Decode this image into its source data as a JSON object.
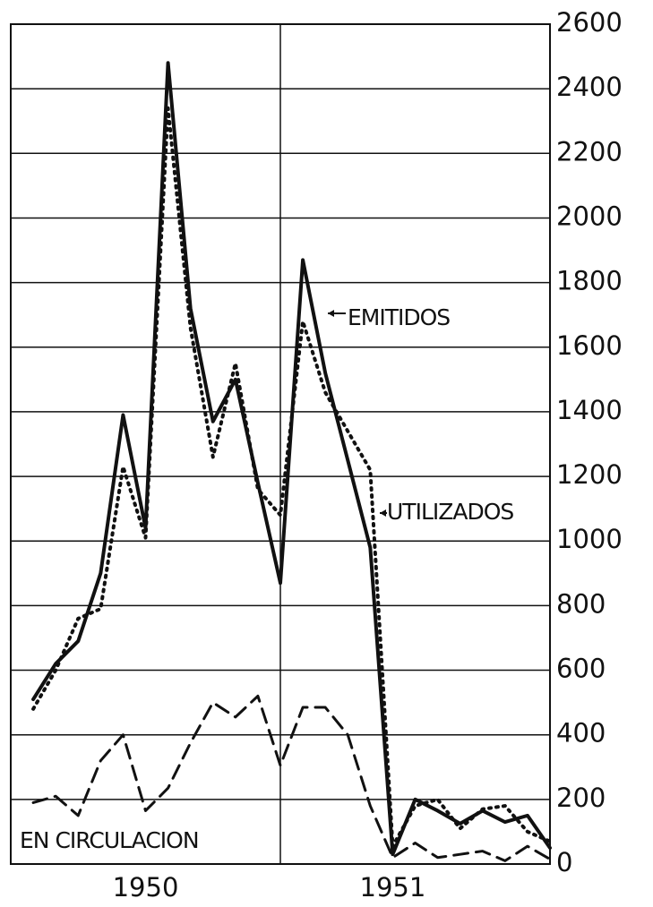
{
  "chart_data": {
    "type": "line",
    "x": [
      1,
      2,
      3,
      4,
      5,
      6,
      7,
      8,
      9,
      10,
      11,
      12,
      13,
      14,
      15,
      16,
      17,
      18,
      19,
      20,
      21,
      22,
      23,
      24
    ],
    "xlim": [
      0,
      24
    ],
    "xticks": [
      {
        "value": 6,
        "label": "1950"
      },
      {
        "value": 17,
        "label": "1951"
      }
    ],
    "ylim": [
      0,
      2600
    ],
    "yticks": [
      0,
      200,
      400,
      600,
      800,
      1000,
      1200,
      1400,
      1600,
      1800,
      2000,
      2200,
      2400,
      2600
    ],
    "grid": true,
    "series": [
      {
        "name": "EMITIDOS",
        "color": "#111111",
        "style": "solid",
        "values": [
          510,
          620,
          690,
          900,
          1390,
          1040,
          2480,
          1720,
          1370,
          1500,
          1180,
          870,
          1870,
          1520,
          1250,
          980,
          30,
          200,
          165,
          125,
          165,
          130,
          150,
          50
        ]
      },
      {
        "name": "UTILIZADOS",
        "color": "#111111",
        "style": "dotted",
        "values": [
          480,
          600,
          760,
          790,
          1230,
          1010,
          2340,
          1660,
          1260,
          1550,
          1160,
          1080,
          1680,
          1460,
          1340,
          1220,
          55,
          180,
          200,
          110,
          170,
          180,
          100,
          70
        ]
      },
      {
        "name": "EN CIRCULACION",
        "color": "#111111",
        "style": "dashed",
        "values": [
          190,
          210,
          150,
          320,
          400,
          165,
          235,
          375,
          500,
          455,
          520,
          305,
          485,
          485,
          400,
          180,
          20,
          65,
          20,
          30,
          40,
          10,
          55,
          15
        ]
      }
    ]
  }
}
